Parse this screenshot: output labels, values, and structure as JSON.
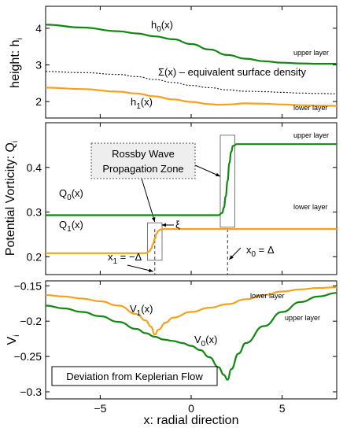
{
  "chart_data": [
    {
      "type": "line",
      "panel": "top",
      "ylabel": "height: h",
      "ylabel_sub": "i",
      "xlim": [
        -8,
        8
      ],
      "ylim": [
        1.55,
        4.6
      ],
      "yticks": [
        2,
        3,
        4
      ],
      "xticks": [
        -5,
        0,
        5
      ],
      "series": [
        {
          "name": "h0(x)",
          "label_main": "h",
          "label_sub": "0",
          "label_tail": "(x)",
          "color": "#118811",
          "dash": "",
          "x": [
            -8,
            -6,
            -4,
            -3,
            -2,
            -1,
            0,
            1,
            2,
            3,
            4,
            5,
            6,
            7,
            8
          ],
          "y": [
            4.1,
            4.02,
            3.92,
            3.86,
            3.78,
            3.7,
            3.57,
            3.42,
            3.27,
            3.17,
            3.1,
            3.06,
            3.04,
            3.03,
            3.03
          ]
        },
        {
          "name": "Σ(x) – equivalent surface density",
          "label_main": "Σ(x) – equivalent surface density",
          "label_sub": "",
          "label_tail": "",
          "color": "#222222",
          "dash": "2,2",
          "x": [
            -8,
            -6,
            -4,
            -3,
            -2,
            -1,
            0,
            1,
            2,
            3,
            4,
            5,
            6,
            7,
            8
          ],
          "y": [
            2.82,
            2.79,
            2.74,
            2.68,
            2.6,
            2.52,
            2.44,
            2.38,
            2.32,
            2.28,
            2.27,
            2.25,
            2.23,
            2.22,
            2.21
          ]
        },
        {
          "name": "h1(x)",
          "label_main": "h",
          "label_sub": "1",
          "label_tail": "(x)",
          "color": "#f5a21a",
          "dash": "",
          "x": [
            -8,
            -6,
            -4,
            -3,
            -2,
            -1,
            0,
            1,
            1.5,
            2,
            3,
            4,
            5,
            6,
            7,
            8
          ],
          "y": [
            2.38,
            2.34,
            2.27,
            2.22,
            2.14,
            2.06,
            1.99,
            1.93,
            1.91,
            1.92,
            1.95,
            1.94,
            1.92,
            1.9,
            1.89,
            1.88
          ]
        }
      ],
      "annotations": {
        "upper_layer": "upper layer",
        "lower_layer": "lower layer"
      }
    },
    {
      "type": "line",
      "panel": "middle",
      "ylabel": "Potential Vorticity: Q",
      "ylabel_sub": "i",
      "xlim": [
        -8,
        8
      ],
      "ylim": [
        0.16,
        0.5
      ],
      "yticks": [
        0.2,
        0.3,
        0.4
      ],
      "xticks": [
        -5,
        0,
        5
      ],
      "series": [
        {
          "name": "Q0(x)",
          "label_main": "Q",
          "label_sub": "0",
          "label_tail": "(x)",
          "color": "#118811",
          "dash": "",
          "x": [
            -8,
            1.5,
            1.7,
            1.8,
            1.9,
            2.0,
            2.1,
            2.2,
            2.3,
            2.5,
            8
          ],
          "y": [
            0.293,
            0.293,
            0.298,
            0.31,
            0.335,
            0.37,
            0.41,
            0.435,
            0.448,
            0.452,
            0.452
          ]
        },
        {
          "name": "Q1(x)",
          "label_main": "Q",
          "label_sub": "1",
          "label_tail": "(x)",
          "color": "#f5a21a",
          "dash": "",
          "x": [
            -8,
            -2.5,
            -2.3,
            -2.2,
            -2.1,
            -2.0,
            -1.9,
            -1.8,
            -1.7,
            -1.5,
            8
          ],
          "y": [
            0.208,
            0.208,
            0.212,
            0.218,
            0.228,
            0.24,
            0.252,
            0.258,
            0.261,
            0.262,
            0.262
          ]
        }
      ],
      "annotations": {
        "rossby_box_line1": "Rossby Wave",
        "rossby_box_line2": "Propagation Zone",
        "xi": "ξ",
        "x1_label_main": "x",
        "x1_label_sub": "1",
        "x1_label_tail": " = −Δ",
        "x0_label_main": "x",
        "x0_label_sub": "0",
        "x0_label_tail": " = Δ",
        "upper_layer": "upper layer",
        "lower_layer": "lower layer"
      }
    },
    {
      "type": "line",
      "panel": "bottom",
      "ylabel": "V",
      "ylabel_sub": "i",
      "xlabel": "x: radial direction",
      "xlim": [
        -8,
        8
      ],
      "ylim": [
        -0.31,
        -0.143
      ],
      "yticks": [
        -0.15,
        -0.2,
        -0.25,
        -0.3
      ],
      "ytick_labels": [
        "−0.15",
        "−0.2",
        "−0.25",
        "−0.3"
      ],
      "xticks": [
        -5,
        0,
        5
      ],
      "xtick_labels": [
        "−5",
        "0",
        "5"
      ],
      "series": [
        {
          "name": "V1(x)",
          "label_main": "V",
          "label_sub": "1",
          "label_tail": "(x)",
          "color": "#f5a21a",
          "dash": "",
          "x": [
            -8,
            -7,
            -6,
            -5,
            -4,
            -3,
            -2.5,
            -2.2,
            -2,
            -1.8,
            -1.4,
            -1,
            0,
            1,
            2,
            3,
            4,
            5,
            6,
            7,
            8
          ],
          "y": [
            -0.163,
            -0.165,
            -0.168,
            -0.172,
            -0.178,
            -0.19,
            -0.199,
            -0.208,
            -0.219,
            -0.212,
            -0.202,
            -0.195,
            -0.187,
            -0.181,
            -0.176,
            -0.169,
            -0.163,
            -0.158,
            -0.155,
            -0.153,
            -0.152
          ]
        },
        {
          "name": "V0(x)",
          "label_main": "V",
          "label_sub": "0",
          "label_tail": "(x)",
          "color": "#118811",
          "dash": "",
          "x": [
            -8,
            -7,
            -6,
            -5,
            -4,
            -3,
            -2.5,
            -2,
            -1.5,
            -1,
            -0.5,
            0,
            0.5,
            1,
            1.5,
            1.8,
            2,
            2.2,
            2.6,
            3,
            4,
            5,
            6,
            7,
            8
          ],
          "y": [
            -0.178,
            -0.182,
            -0.187,
            -0.193,
            -0.201,
            -0.211,
            -0.217,
            -0.222,
            -0.226,
            -0.228,
            -0.231,
            -0.235,
            -0.241,
            -0.251,
            -0.265,
            -0.276,
            -0.283,
            -0.268,
            -0.246,
            -0.231,
            -0.207,
            -0.187,
            -0.173,
            -0.165,
            -0.16
          ]
        }
      ],
      "annotations": {
        "legend_box": "Deviation from Keplerian Flow",
        "upper_layer": "upper layer",
        "lower_layer": "lower layer"
      }
    }
  ]
}
